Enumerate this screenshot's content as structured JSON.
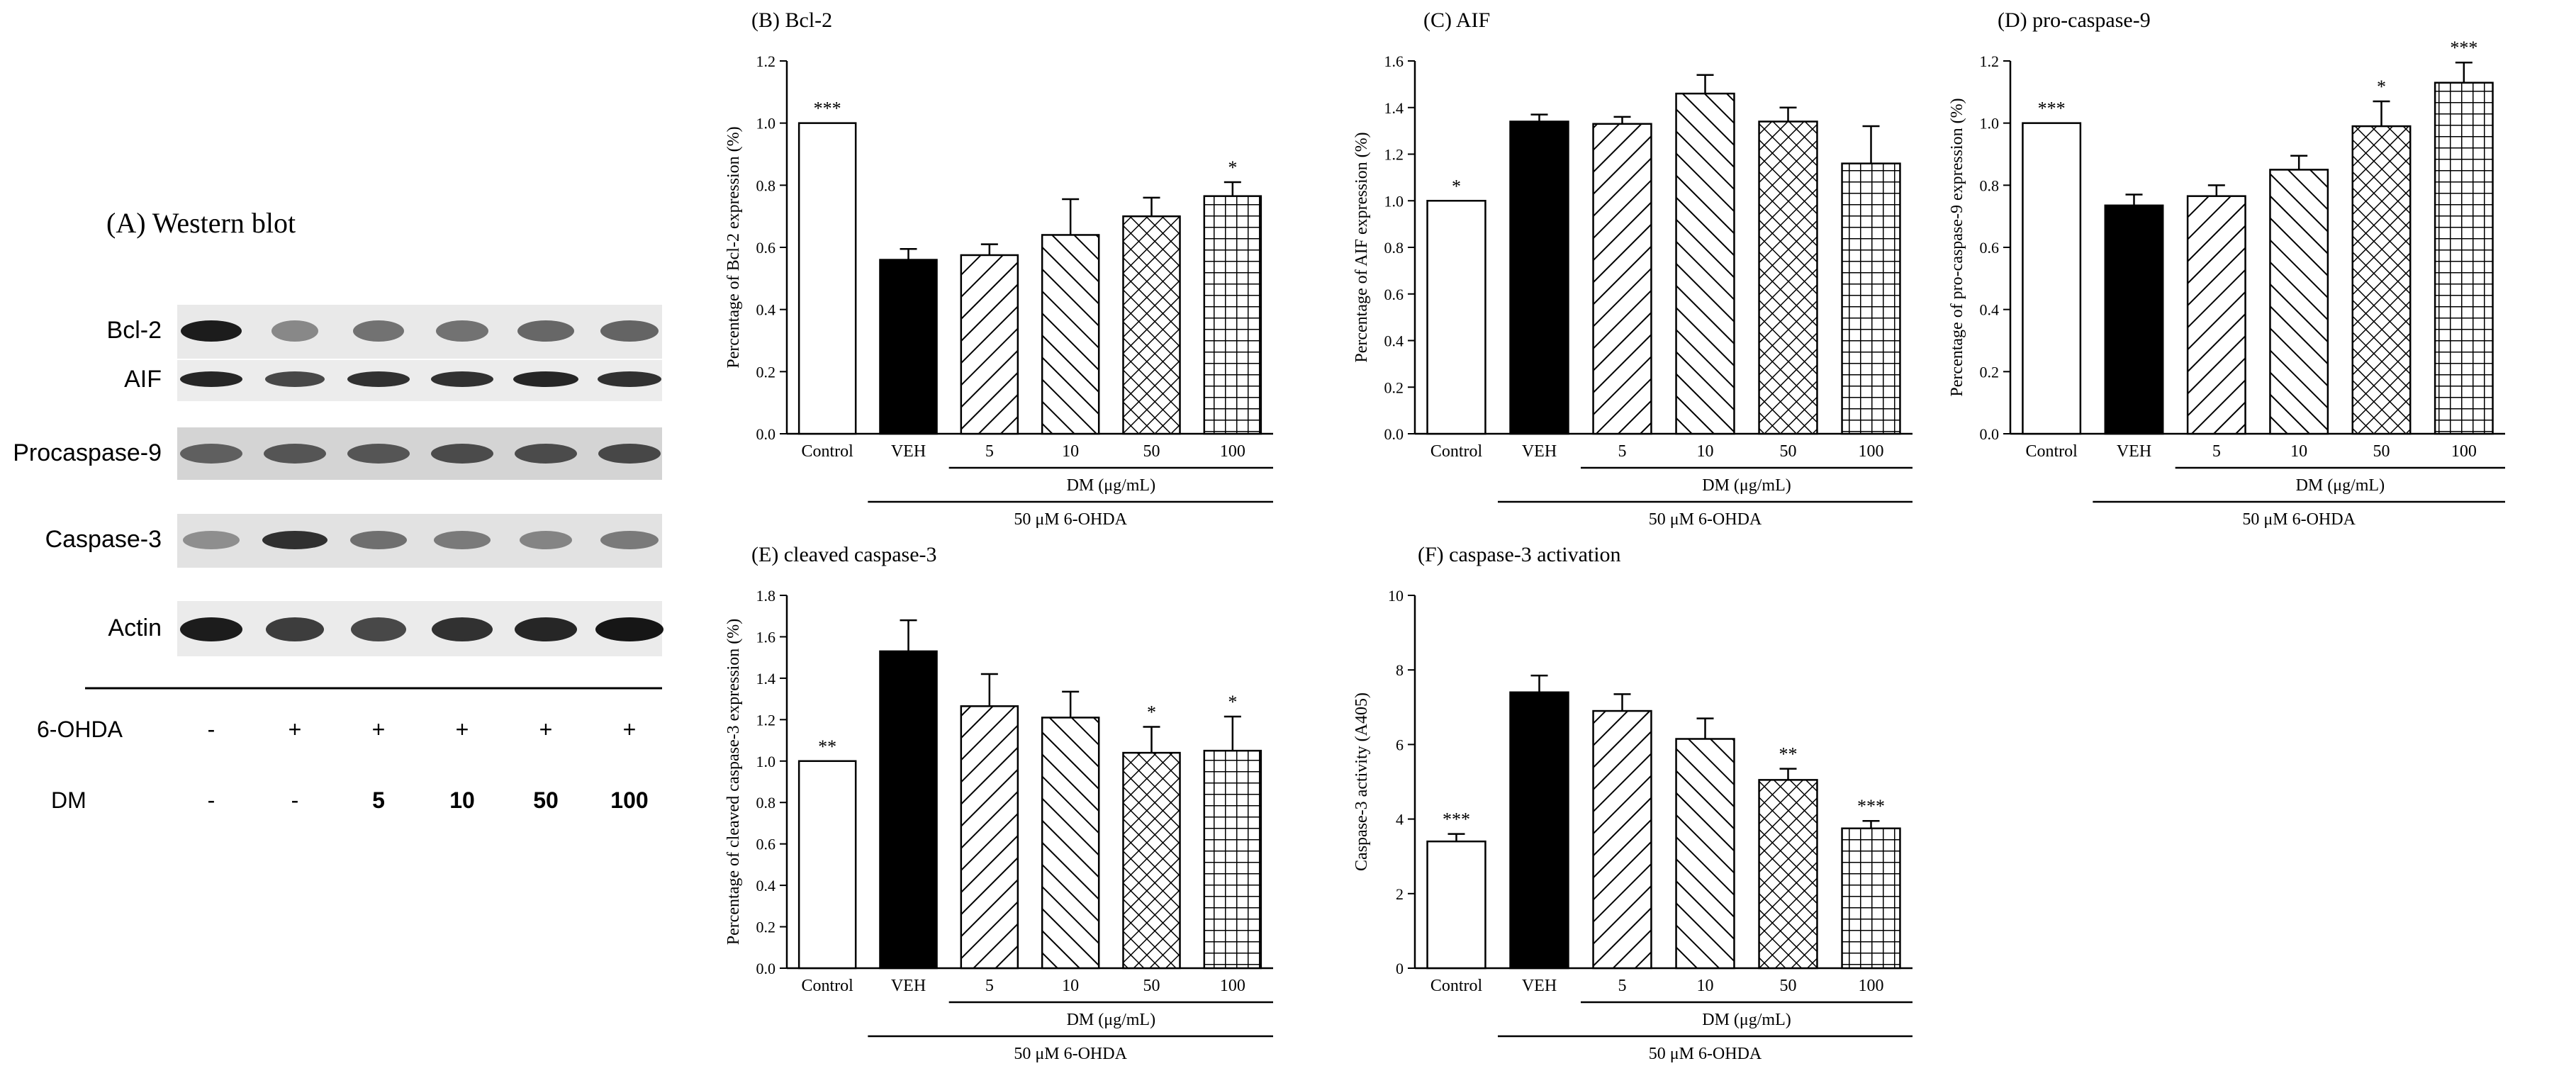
{
  "blot": {
    "title": "(A) Western blot",
    "rows": [
      "Bcl-2",
      "AIF",
      "Procaspase-9",
      "Caspase-3",
      "Actin"
    ],
    "treatments": [
      {
        "label": "6-OHDA",
        "values": [
          "-",
          "+",
          "+",
          "+",
          "+",
          "+"
        ]
      },
      {
        "label": "DM",
        "values": [
          "-",
          "-",
          "5",
          "10",
          "50",
          "100"
        ]
      }
    ]
  },
  "chart_data": [
    {
      "id": "B",
      "type": "bar",
      "title": "(B) Bcl-2",
      "ylabel": "Percentage of Bcl-2 expression (%)",
      "ylim": [
        0,
        1.2
      ],
      "yticks": [
        0,
        0.2,
        0.4,
        0.6,
        0.8,
        1.0,
        1.2
      ],
      "yticklabels": [
        "0.0",
        "0.2",
        "0.4",
        "0.6",
        "0.8",
        "1.0",
        "1.2"
      ],
      "categories": [
        "Control",
        "VEH",
        "5",
        "10",
        "50",
        "100"
      ],
      "values": [
        1.0,
        0.56,
        0.575,
        0.64,
        0.7,
        0.765
      ],
      "errors": [
        0,
        0.035,
        0.035,
        0.115,
        0.06,
        0.045
      ],
      "significance": [
        "***",
        "",
        "",
        "",
        "",
        "*"
      ],
      "dm_label": "DM (μg/mL)",
      "ohda_label": "50 μM 6-OHDA"
    },
    {
      "id": "C",
      "type": "bar",
      "title": "(C) AIF",
      "ylabel": "Percentage of AIF expression (%)",
      "ylim": [
        0,
        1.6
      ],
      "yticks": [
        0,
        0.2,
        0.4,
        0.6,
        0.8,
        1.0,
        1.2,
        1.4,
        1.6
      ],
      "yticklabels": [
        "0.0",
        "0.2",
        "0.4",
        "0.6",
        "0.8",
        "1.0",
        "1.2",
        "1.4",
        "1.6"
      ],
      "categories": [
        "Control",
        "VEH",
        "5",
        "10",
        "50",
        "100"
      ],
      "values": [
        1.0,
        1.34,
        1.33,
        1.46,
        1.34,
        1.16
      ],
      "errors": [
        0,
        0.03,
        0.03,
        0.08,
        0.06,
        0.16
      ],
      "significance": [
        "*",
        "",
        "",
        "",
        "",
        ""
      ],
      "dm_label": "DM (μg/mL)",
      "ohda_label": "50 μM 6-OHDA"
    },
    {
      "id": "D",
      "type": "bar",
      "title": "(D) pro-caspase-9",
      "ylabel": "Percentage of pro-caspase-9 expression (%)",
      "ylim": [
        0,
        1.2
      ],
      "yticks": [
        0,
        0.2,
        0.4,
        0.6,
        0.8,
        1.0,
        1.2
      ],
      "yticklabels": [
        "0.0",
        "0.2",
        "0.4",
        "0.6",
        "0.8",
        "1.0",
        "1.2"
      ],
      "categories": [
        "Control",
        "VEH",
        "5",
        "10",
        "50",
        "100"
      ],
      "values": [
        1.0,
        0.735,
        0.765,
        0.85,
        0.99,
        1.13
      ],
      "errors": [
        0,
        0.035,
        0.035,
        0.045,
        0.08,
        0.065
      ],
      "significance": [
        "***",
        "",
        "",
        "",
        "*",
        "***"
      ],
      "dm_label": "DM (μg/mL)",
      "ohda_label": "50 μM 6-OHDA"
    },
    {
      "id": "E",
      "type": "bar",
      "title": "(E) cleaved caspase-3",
      "ylabel": "Percentage of cleaved caspase-3 expression (%)",
      "ylim": [
        0,
        1.8
      ],
      "yticks": [
        0,
        0.2,
        0.4,
        0.6,
        0.8,
        1.0,
        1.2,
        1.4,
        1.6,
        1.8
      ],
      "yticklabels": [
        "0.0",
        "0.2",
        "0.4",
        "0.6",
        "0.8",
        "1.0",
        "1.2",
        "1.4",
        "1.6",
        "1.8"
      ],
      "categories": [
        "Control",
        "VEH",
        "5",
        "10",
        "50",
        "100"
      ],
      "values": [
        1.0,
        1.53,
        1.265,
        1.21,
        1.04,
        1.05
      ],
      "errors": [
        0,
        0.15,
        0.155,
        0.125,
        0.125,
        0.165
      ],
      "significance": [
        "**",
        "",
        "",
        "",
        "*",
        "*"
      ],
      "dm_label": "DM (μg/mL)",
      "ohda_label": "50 μM 6-OHDA"
    },
    {
      "id": "F",
      "type": "bar",
      "title": "(F) caspase-3 activation",
      "ylabel": "Caspase-3 activity (A405)",
      "ylim": [
        0,
        10
      ],
      "yticks": [
        0,
        2,
        4,
        6,
        8,
        10
      ],
      "yticklabels": [
        "0",
        "2",
        "4",
        "6",
        "8",
        "10"
      ],
      "categories": [
        "Control",
        "VEH",
        "5",
        "10",
        "50",
        "100"
      ],
      "values": [
        3.4,
        7.4,
        6.9,
        6.15,
        5.05,
        3.75
      ],
      "errors": [
        0.2,
        0.45,
        0.45,
        0.55,
        0.3,
        0.2
      ],
      "significance": [
        "***",
        "",
        "",
        "",
        "**",
        "***"
      ],
      "dm_label": "DM (μg/mL)",
      "ohda_label": "50 μM 6-OHDA"
    }
  ]
}
